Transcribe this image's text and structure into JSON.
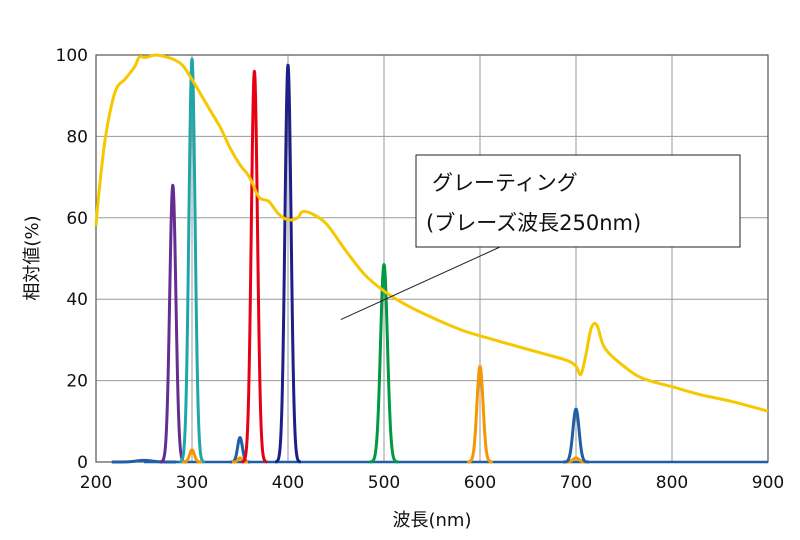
{
  "chart_data": {
    "type": "line",
    "title": "",
    "xlabel": "波長(nm)",
    "ylabel": "相対値(%)",
    "xlim": [
      200,
      900
    ],
    "ylim": [
      0,
      100
    ],
    "xticks": [
      200,
      300,
      400,
      500,
      600,
      700,
      800,
      900
    ],
    "yticks": [
      0,
      20,
      40,
      60,
      80,
      100
    ],
    "grid": true,
    "annotation": {
      "lines": [
        "グレーティング",
        "(ブレーズ波長250nm)"
      ],
      "points_to": {
        "x": 455,
        "y": 35
      }
    },
    "grating": {
      "color": "#F5C800",
      "x": [
        200,
        203,
        210,
        220,
        230,
        240,
        245,
        250,
        255,
        262,
        270,
        280,
        290,
        300,
        310,
        320,
        330,
        340,
        350,
        357,
        362,
        370,
        380,
        390,
        400,
        410,
        415,
        425,
        440,
        460,
        480,
        500,
        520,
        550,
        580,
        600,
        630,
        660,
        690,
        700,
        705,
        710,
        716,
        722,
        730,
        750,
        770,
        800,
        830,
        860,
        900
      ],
      "y": [
        58,
        66,
        80,
        91,
        94,
        97,
        99.5,
        99.4,
        99.6,
        100,
        99.7,
        99,
        97.5,
        94,
        90,
        86,
        82,
        77,
        73,
        71,
        69,
        65,
        64,
        61,
        59.5,
        60,
        61.5,
        61,
        58.5,
        52,
        46,
        42,
        39,
        35.5,
        32.5,
        31,
        29,
        27,
        25,
        23.5,
        21.5,
        26,
        33,
        33.5,
        28,
        23.5,
        20.5,
        18.5,
        16.5,
        15,
        12.5
      ]
    },
    "peaks": [
      {
        "center": 250,
        "height": 0.4,
        "sigma": 8,
        "color": "#1F5FA8"
      },
      {
        "center": 280,
        "height": 68,
        "sigma": 3.2,
        "color": "#662D91"
      },
      {
        "center": 300,
        "height": 99,
        "sigma": 3.2,
        "color": "#1FA6A8"
      },
      {
        "center": 300,
        "height": 3,
        "sigma": 2.5,
        "color": "#F39800"
      },
      {
        "center": 350,
        "height": 6,
        "sigma": 2.5,
        "color": "#1F5FA8"
      },
      {
        "center": 350,
        "height": 1,
        "sigma": 2,
        "color": "#F39800"
      },
      {
        "center": 365,
        "height": 96,
        "sigma": 3.2,
        "color": "#E60012"
      },
      {
        "center": 400,
        "height": 97.5,
        "sigma": 3.2,
        "color": "#1D2088"
      },
      {
        "center": 500,
        "height": 48.5,
        "sigma": 3.6,
        "color": "#009944"
      },
      {
        "center": 600,
        "height": 23.5,
        "sigma": 3.2,
        "color": "#F39800"
      },
      {
        "center": 700,
        "height": 1,
        "sigma": 3,
        "color": "#F39800"
      },
      {
        "center": 700,
        "height": 13,
        "sigma": 3.2,
        "color": "#1F5FA8"
      }
    ],
    "baseline": {
      "x": [
        250,
        900
      ],
      "y": [
        0,
        0
      ],
      "color": "#1F5FA8"
    }
  }
}
